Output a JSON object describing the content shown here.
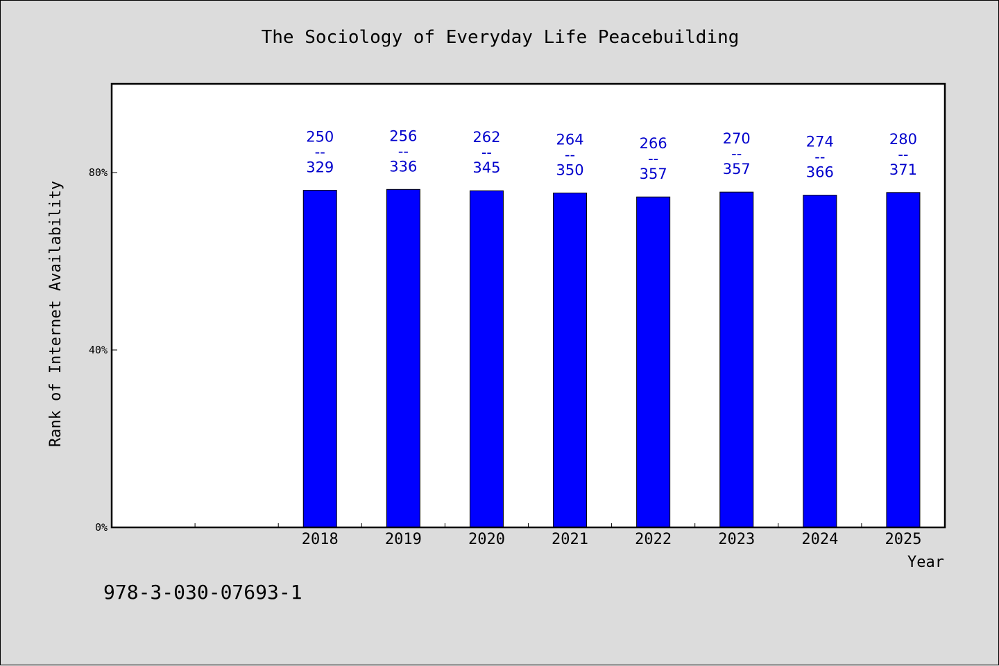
{
  "chart_data": {
    "type": "bar",
    "title": "The Sociology of Everyday Life Peacebuilding",
    "xlabel": "Year",
    "ylabel": "Rank of Internet Availability",
    "y_ticks": [
      "0%",
      "40%",
      "80%"
    ],
    "y_tick_values": [
      0,
      40,
      80
    ],
    "ylim": [
      0,
      100
    ],
    "x_slots": 10,
    "categories": [
      "2018",
      "2019",
      "2020",
      "2021",
      "2022",
      "2023",
      "2024",
      "2025"
    ],
    "values": [
      76.0,
      76.2,
      75.9,
      75.4,
      74.5,
      75.6,
      74.9,
      75.5
    ],
    "rank": [
      250,
      256,
      262,
      264,
      266,
      270,
      274,
      280
    ],
    "total": [
      329,
      336,
      345,
      350,
      357,
      357,
      366,
      371
    ],
    "label_separator": "--",
    "bar_color": "#0000ff",
    "label_color": "#0000cc",
    "grid": false
  },
  "footnote": "978-3-030-07693-1"
}
